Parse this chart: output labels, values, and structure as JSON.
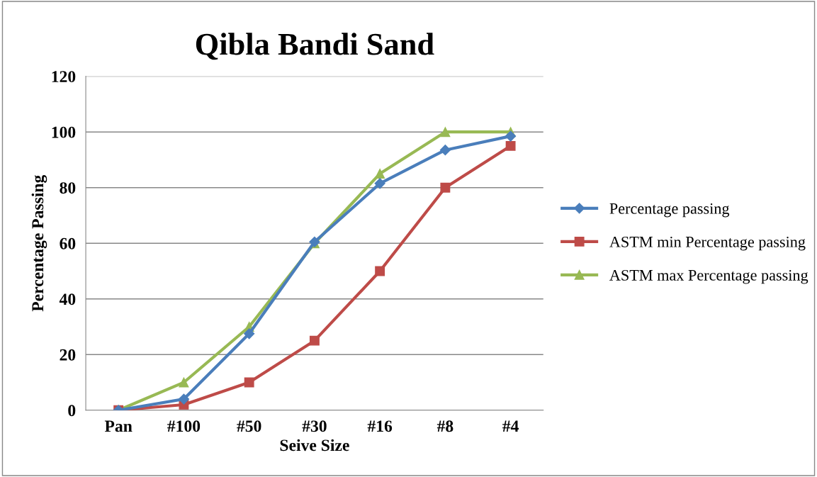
{
  "chart_data": {
    "type": "line",
    "title": "Qibla Bandi Sand",
    "xlabel": "Seive Size",
    "ylabel": "Percentage Passing",
    "categories": [
      "Pan",
      "#100",
      "#50",
      "#30",
      "#16",
      "#8",
      "#4"
    ],
    "series": [
      {
        "name": "Percentage passing",
        "color": "#4a7ebb",
        "marker": "diamond",
        "values": [
          0,
          4,
          27.5,
          60.5,
          81.5,
          93.5,
          98.5
        ]
      },
      {
        "name": "ASTM min Percentage passing",
        "color": "#be4b48",
        "marker": "square",
        "values": [
          0,
          2,
          10,
          25,
          50,
          80,
          95
        ]
      },
      {
        "name": "ASTM max Percentage passing",
        "color": "#98b954",
        "marker": "triangle",
        "values": [
          0,
          10,
          30,
          60,
          85,
          100,
          100
        ]
      }
    ],
    "ylim": [
      0,
      120
    ],
    "yticks": [
      0,
      20,
      40,
      60,
      80,
      100,
      120
    ],
    "grid": "y",
    "legend": "right",
    "line_style": "solid"
  }
}
